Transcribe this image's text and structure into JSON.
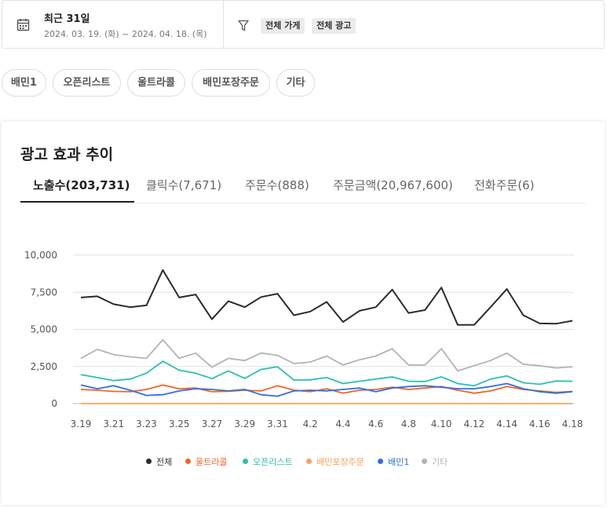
{
  "filter": {
    "period_label": "최근 31일",
    "period_range": "2024. 03. 19. (화) ~ 2024. 04. 18. (목)",
    "store_chip": "전체 가게",
    "ad_chip": "전체 광고"
  },
  "categories": [
    "배민1",
    "오픈리스트",
    "울트라콜",
    "배민포장주문",
    "기타"
  ],
  "card": {
    "title": "광고 효과 추이",
    "tabs": [
      "노출수(203,731)",
      "클릭수(7,671)",
      "주문수(888)",
      "주문금액(20,967,600)",
      "전화주문(6)"
    ],
    "active_tab": 0
  },
  "chart_data": {
    "type": "line",
    "x": [
      "3.19",
      "3.20",
      "3.21",
      "3.22",
      "3.23",
      "3.24",
      "3.25",
      "3.26",
      "3.27",
      "3.28",
      "3.29",
      "3.30",
      "3.31",
      "4.1",
      "4.2",
      "4.3",
      "4.4",
      "4.5",
      "4.6",
      "4.7",
      "4.8",
      "4.9",
      "4.10",
      "4.11",
      "4.12",
      "4.13",
      "4.14",
      "4.15",
      "4.16",
      "4.17",
      "4.18"
    ],
    "x_tick_labels": [
      "3.19",
      "3.21",
      "3.23",
      "3.25",
      "3.27",
      "3.29",
      "3.31",
      "4.2",
      "4.4",
      "4.6",
      "4.8",
      "4.10",
      "4.12",
      "4.14",
      "4.16",
      "4.18"
    ],
    "y_ticks": [
      "0",
      "2,500",
      "5,000",
      "7,500",
      "10,000"
    ],
    "ylim": [
      0,
      10000
    ],
    "grid": true,
    "legend_position": "bottom",
    "series": [
      {
        "name": "전체",
        "color": "#2b2b2b",
        "values": [
          7150,
          7230,
          6700,
          6500,
          6620,
          9000,
          7150,
          7350,
          5680,
          6900,
          6500,
          7180,
          7400,
          5950,
          6200,
          6850,
          5500,
          6250,
          6500,
          7680,
          6100,
          6300,
          7820,
          5300,
          5300,
          6500,
          7720,
          5950,
          5400,
          5380,
          5580
        ]
      },
      {
        "name": "울트라콜",
        "color": "#f26522",
        "values": [
          950,
          900,
          820,
          800,
          950,
          1250,
          1000,
          1050,
          800,
          830,
          900,
          850,
          1200,
          900,
          800,
          1000,
          700,
          900,
          950,
          1100,
          950,
          1050,
          1150,
          900,
          700,
          850,
          1150,
          950,
          850,
          750,
          820
        ]
      },
      {
        "name": "오픈리스트",
        "color": "#2bbfb4",
        "values": [
          1950,
          1750,
          1550,
          1650,
          2050,
          2850,
          2250,
          2050,
          1680,
          2200,
          1700,
          2300,
          2480,
          1580,
          1600,
          1750,
          1350,
          1500,
          1650,
          1800,
          1500,
          1480,
          1800,
          1350,
          1200,
          1650,
          1860,
          1400,
          1300,
          1520,
          1500
        ]
      },
      {
        "name": "배민포장주문",
        "color": "#f7a35c",
        "values": [
          0,
          0,
          0,
          0,
          0,
          0,
          0,
          0,
          0,
          0,
          0,
          0,
          0,
          0,
          0,
          0,
          0,
          0,
          0,
          0,
          0,
          0,
          0,
          0,
          0,
          0,
          0,
          0,
          0,
          0,
          0
        ]
      },
      {
        "name": "배민1",
        "color": "#2f6fe4",
        "values": [
          1250,
          1000,
          1200,
          900,
          550,
          600,
          850,
          1000,
          950,
          850,
          950,
          600,
          500,
          850,
          900,
          850,
          950,
          1050,
          800,
          1050,
          1150,
          1200,
          1100,
          1000,
          1000,
          1150,
          1350,
          1000,
          800,
          700,
          800
        ]
      },
      {
        "name": "기타",
        "color": "#b3b3b3",
        "values": [
          3050,
          3650,
          3300,
          3150,
          3050,
          4300,
          3050,
          3400,
          2450,
          3050,
          2900,
          3400,
          3250,
          2700,
          2800,
          3200,
          2600,
          2950,
          3200,
          3700,
          2600,
          2600,
          3700,
          2200,
          2550,
          2900,
          3400,
          2650,
          2550,
          2400,
          2480
        ]
      }
    ]
  }
}
